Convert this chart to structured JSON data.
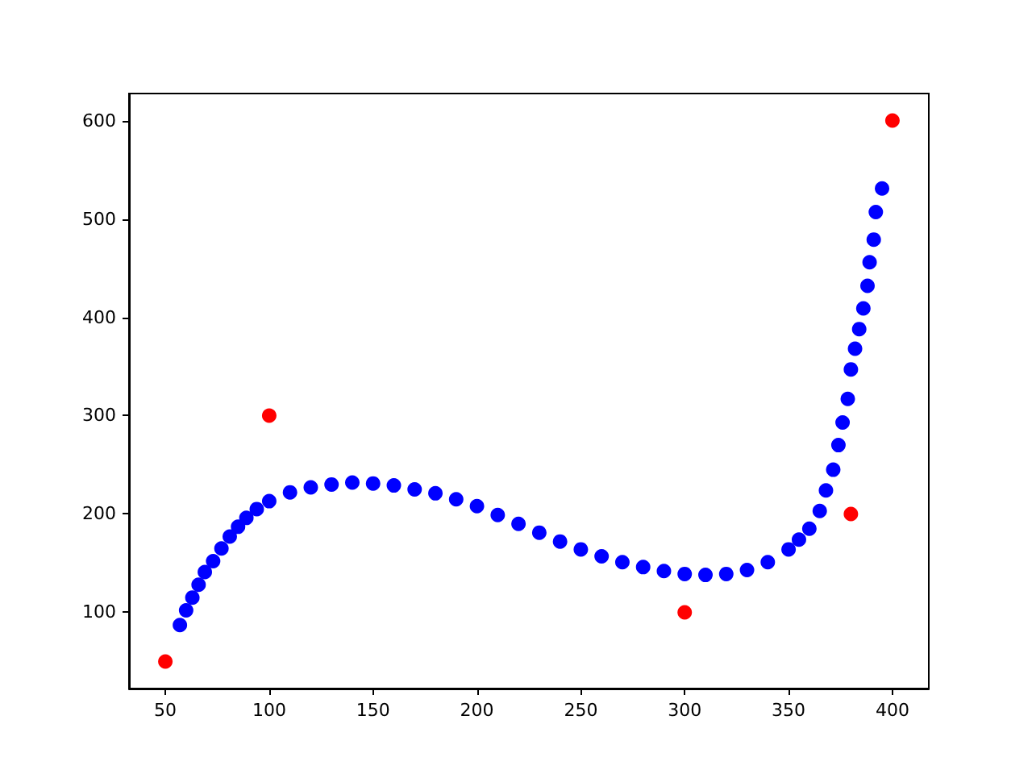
{
  "chart_data": {
    "type": "scatter",
    "marker": "circle",
    "grid": false,
    "xlim": [
      32.5,
      417.5
    ],
    "ylim": [
      22.5,
      627.5
    ],
    "xticks": [
      50,
      100,
      150,
      200,
      250,
      300,
      350,
      400
    ],
    "yticks": [
      100,
      200,
      300,
      400,
      500,
      600
    ],
    "series": [
      {
        "color": "#0000ff",
        "x": [
          57,
          60,
          63,
          66,
          69,
          73,
          77,
          81,
          85,
          89,
          94,
          100,
          110,
          120,
          130,
          140,
          150,
          160,
          170,
          180,
          190,
          200,
          210,
          220,
          230,
          240,
          250,
          260,
          270,
          280,
          290,
          300,
          310,
          320,
          330,
          340,
          350,
          355,
          360,
          365,
          368,
          371.5,
          374,
          376,
          378.5,
          380,
          382,
          384,
          386,
          388,
          389,
          391,
          392,
          395
        ],
        "values": [
          87,
          102,
          115,
          128,
          141,
          152,
          165,
          177,
          187,
          196,
          205,
          213,
          222,
          227,
          230,
          232,
          231,
          229,
          225,
          221,
          215,
          208,
          199,
          190,
          181,
          172,
          164,
          157,
          151,
          146,
          142,
          139,
          138,
          139,
          143,
          151,
          164,
          174,
          185,
          203,
          224,
          245,
          270,
          293,
          317,
          347,
          368,
          388,
          409,
          432,
          456,
          479,
          507,
          531
        ]
      },
      {
        "color": "#ff0000",
        "x": [
          50,
          100,
          300,
          380,
          400
        ],
        "values": [
          50,
          300,
          100,
          200,
          600
        ]
      }
    ]
  }
}
